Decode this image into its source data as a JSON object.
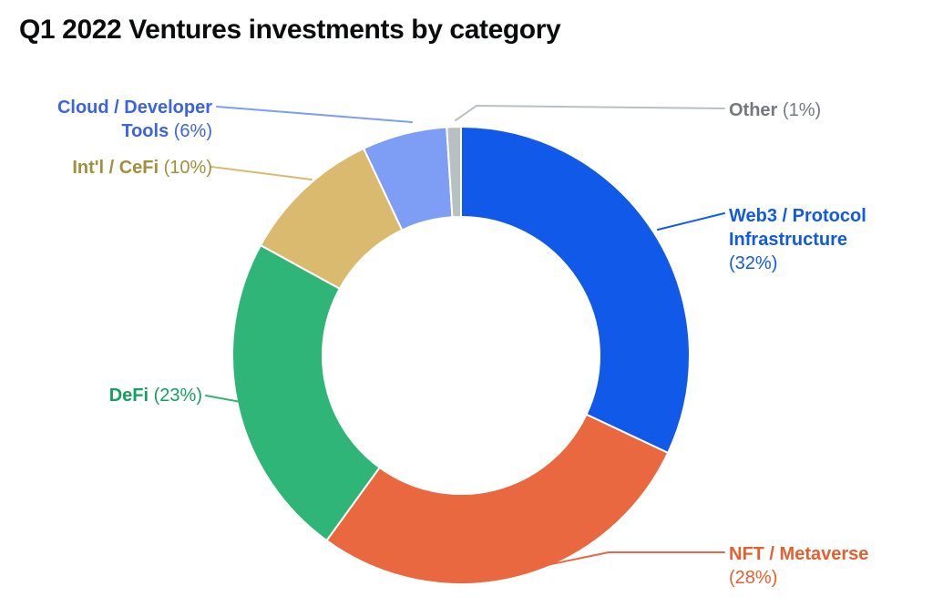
{
  "chart_data": {
    "type": "pie",
    "subtype": "donut",
    "title": "Q1 2022 Ventures investments by category",
    "unit": "%",
    "start_angle_deg": 0,
    "direction": "clockwise",
    "legend": "callout-labels",
    "slices": [
      {
        "label": "Web3 / Protocol Infrastructure",
        "value": 32,
        "pct_label": "(32%)",
        "color": "#1159e8",
        "label_color": "#1159e8"
      },
      {
        "label": "NFT / Metaverse",
        "value": 28,
        "pct_label": "(28%)",
        "color": "#ea6840",
        "label_color": "#e5602f"
      },
      {
        "label": "DeFi",
        "value": 23,
        "pct_label": "(23%)",
        "color": "#2eb577",
        "label_color": "#14a05e"
      },
      {
        "label": "Int'l / CeFi",
        "value": 10,
        "pct_label": "(10%)",
        "color": "#d9ba6e",
        "label_color": "#a18f3b"
      },
      {
        "label": "Cloud / Developer Tools",
        "value": 6,
        "pct_label": "(6%)",
        "color": "#7e9ef5",
        "label_color": "#3d64e0"
      },
      {
        "label": "Other",
        "value": 1,
        "pct_label": "(1%)",
        "color": "#b9c0c4",
        "label_color": "#75797e"
      }
    ]
  }
}
